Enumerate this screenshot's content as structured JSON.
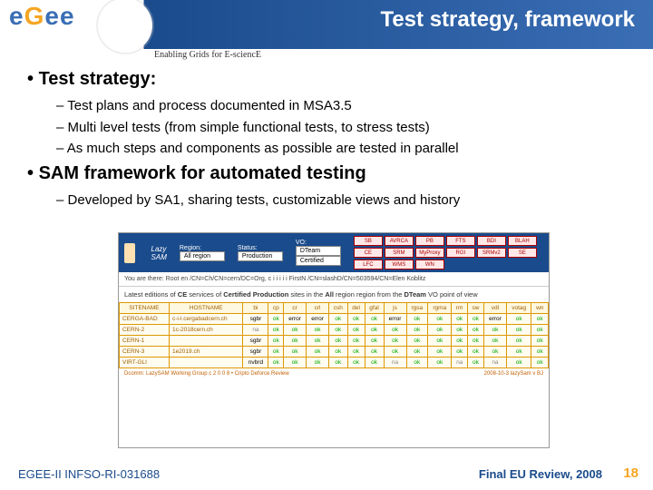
{
  "header": {
    "brand_letters": [
      "e",
      "G",
      "e",
      "e"
    ],
    "brand_colors": [
      "#3a6eb5",
      "#f5a623",
      "#3a6eb5",
      "#3a6eb5"
    ],
    "band_gradient": [
      "#1a4b8c",
      "#3a6eb5"
    ],
    "title": "Test strategy, framework",
    "subtitle": "Enabling Grids for E-sciencE"
  },
  "bullets": {
    "main1": "Test strategy:",
    "sub1a": "Test plans and process documented in MSA3.5",
    "sub1b": "Multi level tests (from simple functional tests, to stress tests)",
    "sub1c": "As much steps and components as possible are tested in parallel",
    "main2": "SAM framework for automated testing",
    "sub2a": "Developed by SA1, sharing tests, customizable views and history"
  },
  "screenshot": {
    "tool_name": "Lazy SAM",
    "region_label": "Region:",
    "region_value": "All region",
    "status_label": "Status:",
    "status_value": "Production",
    "vo_label": "VO:",
    "vo_value": "DTeam",
    "cert_value": "Certified",
    "tags_row1": [
      "SB",
      "AVRCA",
      "PB",
      "FTS",
      "BDI"
    ],
    "tags_row2": [
      "BLAH",
      "CE",
      "SRM",
      "MyProxy",
      "RGI"
    ],
    "tags_row3": [
      "SRMv2",
      "SE",
      "LFC",
      "WMS",
      "WN"
    ],
    "info_line": "You are there: Root en /CN=Ch/CN=cern/DC=Org, c i i i i i FirstN /CN=slashD/CN=503594/CN=Elen Koblitz",
    "desc_prefix": "Latest editions of ",
    "desc_bold1": "CE",
    "desc_mid1": " services of ",
    "desc_bold2": "Certified Production",
    "desc_mid2": " sites in the ",
    "desc_bold3": "All",
    "desc_mid3": " region region from the ",
    "desc_bold4": "DTeam",
    "desc_end": " VO point of view",
    "columns": [
      "SITENAME",
      "HOSTNAME",
      "bi",
      "cp",
      "cr",
      "crl",
      "csh",
      "del",
      "gfal",
      "js",
      "rgsa",
      "rgma",
      "rm",
      "sw",
      "vdl",
      "votag",
      "wn"
    ],
    "rows": [
      {
        "site": "CERGA-BAD",
        "host": "c-i-l.cergabadcern.ch",
        "cells": [
          "sgbr",
          "ok",
          "error",
          "error",
          "ok",
          "ok",
          "ok",
          "error",
          "ok",
          "ok",
          "ok",
          "ok",
          "error",
          "ok",
          "ok"
        ]
      },
      {
        "site": "CERN-2",
        "host": "1c-2018cern.ch",
        "cells": [
          "na",
          "ok",
          "ok",
          "ok",
          "ok",
          "ok",
          "ok",
          "ok",
          "ok",
          "ok",
          "ok",
          "ok",
          "ok",
          "ok",
          "ok"
        ]
      },
      {
        "site": "CERN-1",
        "host": "",
        "cells": [
          "sgbr",
          "ok",
          "ok",
          "ok",
          "ok",
          "ok",
          "ok",
          "ok",
          "ok",
          "ok",
          "ok",
          "ok",
          "ok",
          "ok",
          "ok"
        ]
      },
      {
        "site": "CERN-3",
        "host": "1e2019.ch",
        "cells": [
          "sgbr",
          "ok",
          "ok",
          "ok",
          "ok",
          "ok",
          "ok",
          "ok",
          "ok",
          "ok",
          "ok",
          "ok",
          "ok",
          "ok",
          "ok"
        ]
      },
      {
        "site": "VIRT-GLI",
        "host": "",
        "cells": [
          "nvbrd",
          "ok",
          "ok",
          "ok",
          "ok",
          "ok",
          "ok",
          "na",
          "ok",
          "ok",
          "na",
          "ok",
          "na",
          "ok",
          "ok"
        ]
      }
    ],
    "footer_left": "Dcomm: LazySAM Working Group  c  2 0 0 8    •  Cripto Deforce Review",
    "footer_right": "2008-10-3 lazySam v BJ"
  },
  "footer": {
    "left": "EGEE-II INFSO-RI-031688",
    "right": "Final EU Review, 2008",
    "slide_number": "18"
  }
}
